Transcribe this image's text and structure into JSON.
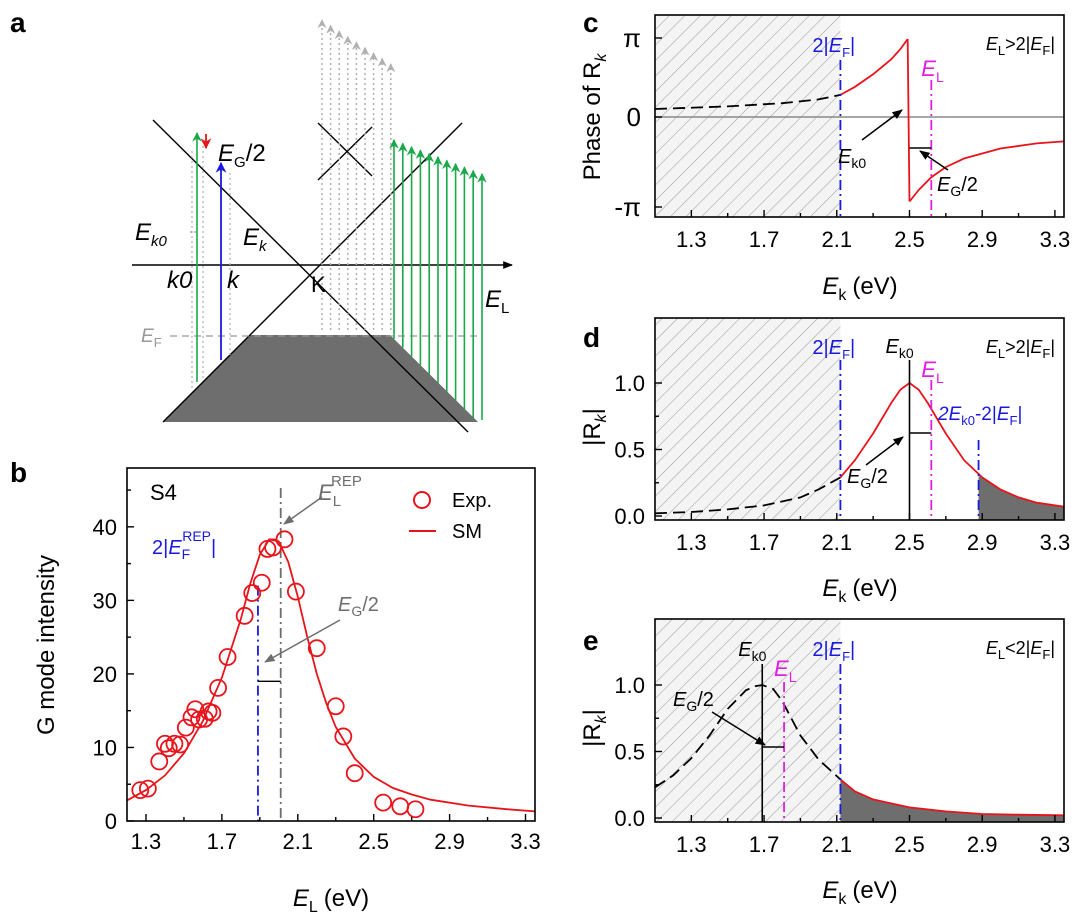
{
  "colors": {
    "red": "#e8141b",
    "blue": "#1a1adc",
    "magenta": "#e020e0",
    "green": "#1aa84a",
    "gray": "#808080",
    "dark": "#6e6e6e"
  },
  "panel_a": {
    "letter": "a",
    "label_eg2": "/2",
    "label_ek0": "E",
    "label_ek0_sub": "k0",
    "label_ek": "E",
    "label_ek_sub": "k",
    "label_k0": "k0",
    "label_k": "k",
    "label_K": "K",
    "label_ef": "E",
    "label_ef_sub": "F",
    "label_el": "E",
    "label_el_sub": "L",
    "label_eg": "E",
    "label_eg_sub": "G"
  },
  "chart_data": [
    {
      "id": "b",
      "type": "scatter",
      "letter": "b",
      "sample": "S4",
      "xlabel": "E",
      "xlabel_sub": "L",
      "xlabel_unit": "(eV)",
      "ylabel": "G mode intensity",
      "xlim": [
        1.2,
        3.35
      ],
      "ylim": [
        0,
        48
      ],
      "xticks": [
        "1.3",
        "1.7",
        "2.1",
        "2.5",
        "2.9",
        "3.3"
      ],
      "yticks": [
        "0",
        "10",
        "20",
        "30",
        "40"
      ],
      "legend": [
        "Exp.",
        "SM"
      ],
      "annotations": {
        "erep_main": "E",
        "erep_sub": "L",
        "erep_sup": "REP",
        "ef_pre": "2|",
        "ef_main": "E",
        "ef_sub": "F",
        "ef_sup": "REP",
        "ef_post": "|",
        "eg_main": "E",
        "eg_sub": "G",
        "eg_post": "/2"
      },
      "vlines": {
        "blue_x": 1.89,
        "gray_x": 2.01,
        "eg_y": 19
      },
      "series": [
        {
          "name": "Exp.",
          "x": [
            1.27,
            1.31,
            1.37,
            1.4,
            1.42,
            1.45,
            1.48,
            1.51,
            1.54,
            1.56,
            1.58,
            1.61,
            1.63,
            1.65,
            1.68,
            1.73,
            1.82,
            1.86,
            1.91,
            1.94,
            1.97,
            2.03,
            2.09,
            2.2,
            2.3,
            2.34,
            2.4,
            2.55,
            2.64,
            2.72
          ],
          "y": [
            4.2,
            4.4,
            8.1,
            10.5,
            9.9,
            10.5,
            10.4,
            12.7,
            14.1,
            15.2,
            13.8,
            13.9,
            14.9,
            14.7,
            18.1,
            22.3,
            27.9,
            31.0,
            32.4,
            37.0,
            37.2,
            38.3,
            31.2,
            23.5,
            15.6,
            11.5,
            6.5,
            2.5,
            2.0,
            1.6
          ]
        },
        {
          "name": "SM",
          "x": [
            1.2,
            1.3,
            1.4,
            1.5,
            1.6,
            1.7,
            1.8,
            1.85,
            1.9,
            1.95,
            2.0,
            2.05,
            2.1,
            2.15,
            2.2,
            2.25,
            2.3,
            2.4,
            2.5,
            2.6,
            2.7,
            2.8,
            3.0,
            3.2,
            3.35
          ],
          "y": [
            2.8,
            4.2,
            6.2,
            9.2,
            13.6,
            19.5,
            27.5,
            32.3,
            36.2,
            38.3,
            38.0,
            35.2,
            30.5,
            25.0,
            20.0,
            16.0,
            12.8,
            8.5,
            6.0,
            4.5,
            3.6,
            2.9,
            2.1,
            1.6,
            1.3
          ]
        }
      ]
    },
    {
      "id": "c",
      "type": "line",
      "letter": "c",
      "xlabel": "E",
      "xlabel_sub": "k",
      "xlabel_unit": "(eV)",
      "ylabel": "Phase of R",
      "ylabel_sub": "k",
      "xlim": [
        1.1,
        3.35
      ],
      "xticks": [
        "1.3",
        "1.7",
        "2.1",
        "2.5",
        "2.9",
        "3.3"
      ],
      "yticks": [
        "π",
        "0",
        "-π"
      ],
      "ef_x": 2.12,
      "el_x": 2.62,
      "ek0_x": 2.5,
      "cond": {
        "a": "E",
        "a_sub": "L",
        "op": ">2|",
        "b": "E",
        "b_sub": "F",
        "end": "|"
      },
      "labels": {
        "ef_pre": "2|",
        "ef_main": "E",
        "ef_sub": "F",
        "ef_post": "|",
        "el_main": "E",
        "el_sub": "L",
        "ek0_main": "E",
        "ek0_sub": "k0",
        "eg_main": "E",
        "eg_sub": "G",
        "eg_post": "/2"
      },
      "series": [
        {
          "name": "dashed",
          "x": [
            1.1,
            1.5,
            1.8,
            2.0,
            2.12
          ],
          "y": [
            0.32,
            0.42,
            0.55,
            0.7,
            0.88
          ]
        },
        {
          "name": "red-left",
          "x": [
            2.12,
            2.2,
            2.3,
            2.4,
            2.45,
            2.49
          ],
          "y": [
            0.88,
            1.2,
            1.7,
            2.3,
            2.7,
            3.1
          ]
        },
        {
          "name": "red-right",
          "x": [
            2.5,
            2.55,
            2.62,
            2.7,
            2.8,
            3.0,
            3.2,
            3.35
          ],
          "y": [
            -2.95,
            -2.55,
            -2.1,
            -1.75,
            -1.45,
            -1.1,
            -0.92,
            -0.85
          ]
        }
      ]
    },
    {
      "id": "d",
      "type": "line",
      "letter": "d",
      "xlabel": "E",
      "xlabel_sub": "k",
      "xlabel_unit": "(eV)",
      "ylabel": "|R",
      "ylabel_sub": "k",
      "ylabel_post": "|",
      "xlim": [
        1.1,
        3.35
      ],
      "ylim": [
        0,
        1.45
      ],
      "xticks": [
        "1.3",
        "1.7",
        "2.1",
        "2.5",
        "2.9",
        "3.3"
      ],
      "yticks": [
        "0.0",
        "0.5",
        "1.0"
      ],
      "ef_x": 2.12,
      "el_x": 2.62,
      "ek0_x": 2.5,
      "cut_x": 2.88,
      "cond": {
        "a": "E",
        "a_sub": "L",
        "op": ">2|",
        "b": "E",
        "b_sub": "F",
        "end": "|"
      },
      "labels": {
        "ef_pre": "2|",
        "ef_main": "E",
        "ef_sub": "F",
        "ef_post": "|",
        "el_main": "E",
        "el_sub": "L",
        "ek0_main": "E",
        "ek0_sub": "k0",
        "eg_main": "E",
        "eg_sub": "G",
        "eg_post": "/2",
        "cut_pre": "2E",
        "cut_sub": "k0",
        "cut_mid": "-2|",
        "cut_main": "E",
        "cut_sub2": "F",
        "cut_post": "|"
      },
      "series": [
        {
          "name": "dashed",
          "x": [
            1.1,
            1.3,
            1.5,
            1.7,
            1.9,
            2.0,
            2.12
          ],
          "y": [
            0.02,
            0.03,
            0.05,
            0.08,
            0.14,
            0.2,
            0.29
          ]
        },
        {
          "name": "red",
          "x": [
            2.12,
            2.2,
            2.3,
            2.4,
            2.45,
            2.5,
            2.55,
            2.6,
            2.7,
            2.8,
            2.9,
            3.0,
            3.1,
            3.2,
            3.35
          ],
          "y": [
            0.29,
            0.42,
            0.62,
            0.85,
            0.95,
            1.0,
            0.95,
            0.85,
            0.62,
            0.42,
            0.29,
            0.2,
            0.14,
            0.1,
            0.07
          ]
        }
      ]
    },
    {
      "id": "e",
      "type": "line",
      "letter": "e",
      "xlabel": "E",
      "xlabel_sub": "k",
      "xlabel_unit": "(eV)",
      "ylabel": "|R",
      "ylabel_sub": "k",
      "ylabel_post": "|",
      "xlim": [
        1.1,
        3.35
      ],
      "ylim": [
        0,
        1.45
      ],
      "xticks": [
        "1.3",
        "1.7",
        "2.1",
        "2.5",
        "2.9",
        "3.3"
      ],
      "yticks": [
        "0.0",
        "0.5",
        "1.0"
      ],
      "ef_x": 2.12,
      "el_x": 1.81,
      "ek0_x": 1.69,
      "cond": {
        "a": "E",
        "a_sub": "L",
        "op": "<2|",
        "b": "E",
        "b_sub": "F",
        "end": "|"
      },
      "labels": {
        "ef_pre": "2|",
        "ef_main": "E",
        "ef_sub": "F",
        "ef_post": "|",
        "el_main": "E",
        "el_sub": "L",
        "ek0_main": "E",
        "ek0_sub": "k0",
        "eg_main": "E",
        "eg_sub": "G",
        "eg_post": "/2"
      },
      "series": [
        {
          "name": "dashed",
          "x": [
            1.1,
            1.2,
            1.3,
            1.4,
            1.5,
            1.6,
            1.65,
            1.69,
            1.75,
            1.8,
            1.9,
            2.0,
            2.12
          ],
          "y": [
            0.23,
            0.32,
            0.45,
            0.62,
            0.82,
            0.96,
            0.99,
            1.0,
            0.97,
            0.88,
            0.62,
            0.44,
            0.29
          ]
        },
        {
          "name": "red",
          "x": [
            2.12,
            2.2,
            2.3,
            2.5,
            2.7,
            2.9,
            3.1,
            3.35
          ],
          "y": [
            0.29,
            0.2,
            0.14,
            0.08,
            0.05,
            0.03,
            0.025,
            0.02
          ]
        }
      ]
    }
  ]
}
